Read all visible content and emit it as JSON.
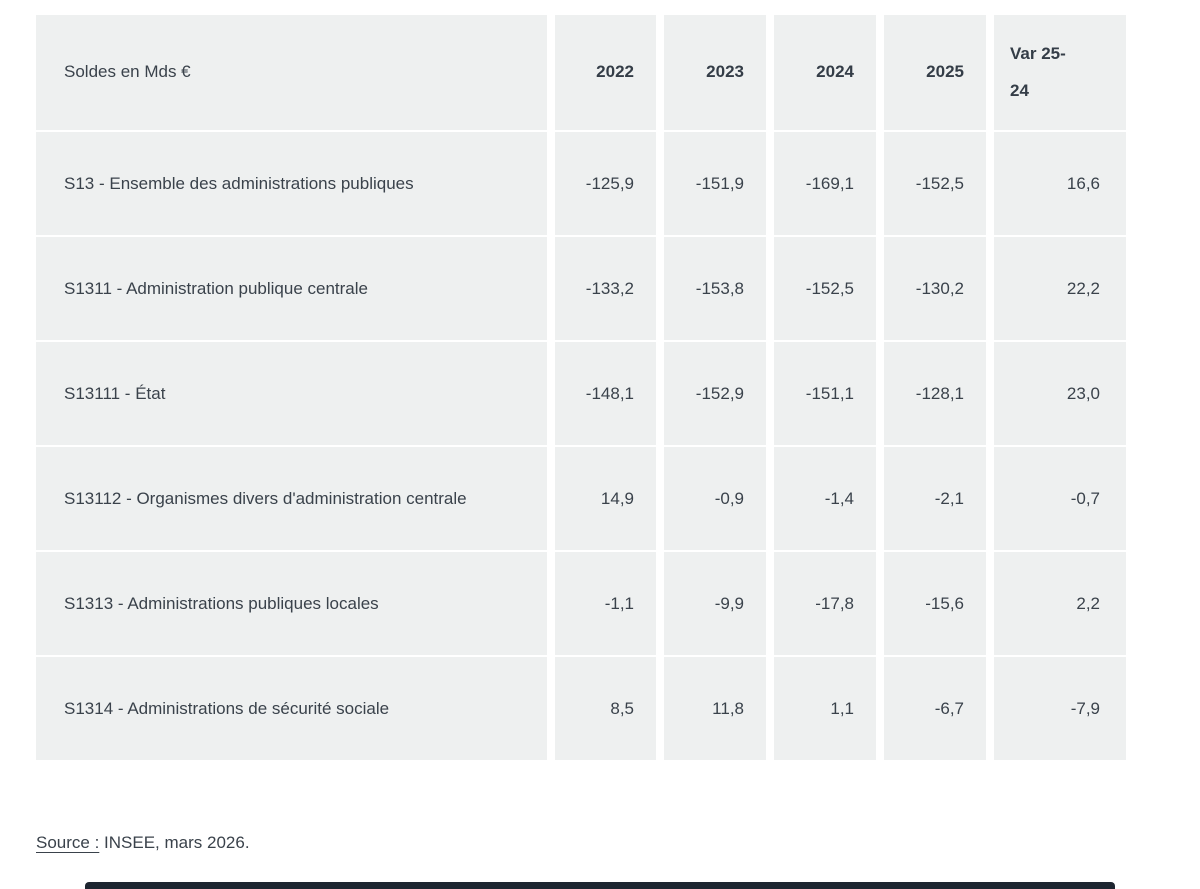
{
  "table": {
    "unit_label": "Soldes en Mds €",
    "columns": [
      "2022",
      "2023",
      "2024",
      "2025",
      "Var 25-24"
    ],
    "rows": [
      {
        "label": "S13 - Ensemble des administrations publiques",
        "values": [
          "-125,9",
          "-151,9",
          "-169,1",
          "-152,5",
          "16,6"
        ]
      },
      {
        "label": "S1311 - Administration publique centrale",
        "values": [
          "-133,2",
          "-153,8",
          "-152,5",
          "-130,2",
          "22,2"
        ]
      },
      {
        "label": "S13111 - État",
        "values": [
          "-148,1",
          "-152,9",
          "-151,1",
          "-128,1",
          "23,0"
        ]
      },
      {
        "label": "S13112 - Organismes divers d'administration centrale",
        "values": [
          "14,9",
          "-0,9",
          "-1,4",
          "-2,1",
          "-0,7"
        ]
      },
      {
        "label": "S1313 - Administrations publiques locales",
        "values": [
          "-1,1",
          "-9,9",
          "-17,8",
          "-15,6",
          "2,2"
        ]
      },
      {
        "label": "S1314 - Administrations de sécurité sociale",
        "values": [
          "8,5",
          "11,8",
          "1,1",
          "-6,7",
          "-7,9"
        ]
      }
    ]
  },
  "chart_data": {
    "type": "table",
    "title": "Soldes en Mds €",
    "categories": [
      "2022",
      "2023",
      "2024",
      "2025",
      "Var 25-24"
    ],
    "series": [
      {
        "name": "S13 - Ensemble des administrations publiques",
        "values": [
          -125.9,
          -151.9,
          -169.1,
          -152.5,
          16.6
        ]
      },
      {
        "name": "S1311 - Administration publique centrale",
        "values": [
          -133.2,
          -153.8,
          -152.5,
          -130.2,
          22.2
        ]
      },
      {
        "name": "S13111 - État",
        "values": [
          -148.1,
          -152.9,
          -151.1,
          -128.1,
          23.0
        ]
      },
      {
        "name": "S13112 - Organismes divers d'administration centrale",
        "values": [
          14.9,
          -0.9,
          -1.4,
          -2.1,
          -0.7
        ]
      },
      {
        "name": "S1313 - Administrations publiques locales",
        "values": [
          -1.1,
          -9.9,
          -17.8,
          -15.6,
          2.2
        ]
      },
      {
        "name": "S1314 - Administrations de sécurité sociale",
        "values": [
          8.5,
          11.8,
          1.1,
          -6.7,
          -7.9
        ]
      }
    ]
  },
  "source": {
    "label": "Source :",
    "text": " INSEE, mars 2026."
  },
  "colors": {
    "cell_background": "#eef0f0",
    "text": "#3a424b",
    "bottom_bar": "#1d2530"
  }
}
